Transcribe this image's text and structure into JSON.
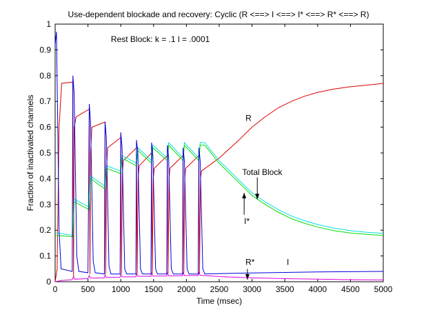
{
  "chart_data": {
    "type": "line",
    "title": "Use-dependent blockade and recovery:  Cyclic (R <==> I <==> I* <==> R* <==> R)",
    "xlabel": "Time (msec)",
    "ylabel": "Fraction of inactivated channels",
    "xlim": [
      0,
      5000
    ],
    "ylim": [
      0,
      1
    ],
    "xticks": [
      0,
      500,
      1000,
      1500,
      2000,
      2500,
      3000,
      3500,
      4000,
      4500,
      5000
    ],
    "yticks": [
      0,
      0.1,
      0.2,
      0.3,
      0.4,
      0.5,
      0.6,
      0.7,
      0.8,
      0.9,
      1
    ],
    "grid": false,
    "annotations": [
      {
        "text": "Rest Block:  k = .1  l = .0001",
        "x": 850,
        "y": 0.93
      },
      {
        "text": "R",
        "x": 2900,
        "y": 0.625
      },
      {
        "text": "Total Block",
        "x": 2850,
        "y": 0.415
      },
      {
        "text": "I*",
        "x": 2880,
        "y": 0.225
      },
      {
        "text": "R*",
        "x": 2900,
        "y": 0.065
      },
      {
        "text": "I",
        "x": 3530,
        "y": 0.065
      }
    ],
    "arrows": [
      {
        "from": [
          3080,
          0.405
        ],
        "to": [
          3080,
          0.32
        ]
      },
      {
        "from": [
          2880,
          0.26
        ],
        "to": [
          2880,
          0.345
        ]
      },
      {
        "from": [
          2930,
          0.05
        ],
        "to": [
          2930,
          0.008
        ]
      }
    ],
    "series": [
      {
        "name": "R",
        "color": "#dd0000",
        "values": [
          [
            0,
            0
          ],
          [
            30,
            0.05
          ],
          [
            60,
            0.6
          ],
          [
            100,
            0.77
          ],
          [
            270,
            0.775
          ],
          [
            280,
            0.02
          ],
          [
            290,
            0.6
          ],
          [
            320,
            0.64
          ],
          [
            520,
            0.67
          ],
          [
            530,
            0.03
          ],
          [
            540,
            0.5
          ],
          [
            560,
            0.6
          ],
          [
            760,
            0.62
          ],
          [
            770,
            0.03
          ],
          [
            785,
            0.45
          ],
          [
            800,
            0.52
          ],
          [
            1000,
            0.56
          ],
          [
            1010,
            0.03
          ],
          [
            1025,
            0.42
          ],
          [
            1040,
            0.47
          ],
          [
            1240,
            0.52
          ],
          [
            1250,
            0.03
          ],
          [
            1265,
            0.4
          ],
          [
            1280,
            0.45
          ],
          [
            1470,
            0.5
          ],
          [
            1480,
            0.03
          ],
          [
            1495,
            0.4
          ],
          [
            1510,
            0.44
          ],
          [
            1710,
            0.49
          ],
          [
            1720,
            0.03
          ],
          [
            1735,
            0.4
          ],
          [
            1750,
            0.44
          ],
          [
            1950,
            0.49
          ],
          [
            1960,
            0.03
          ],
          [
            1975,
            0.4
          ],
          [
            1990,
            0.44
          ],
          [
            2190,
            0.49
          ],
          [
            2200,
            0.03
          ],
          [
            2215,
            0.4
          ],
          [
            2230,
            0.43
          ],
          [
            2500,
            0.48
          ],
          [
            2800,
            0.55
          ],
          [
            3000,
            0.6
          ],
          [
            3200,
            0.64
          ],
          [
            3400,
            0.675
          ],
          [
            3600,
            0.7
          ],
          [
            3800,
            0.72
          ],
          [
            4000,
            0.735
          ],
          [
            4250,
            0.748
          ],
          [
            4500,
            0.757
          ],
          [
            4750,
            0.763
          ],
          [
            5000,
            0.77
          ]
        ]
      },
      {
        "name": "Total Block",
        "color": "#00dddd",
        "values": [
          [
            0,
            0.19
          ],
          [
            270,
            0.18
          ],
          [
            290,
            0.32
          ],
          [
            520,
            0.29
          ],
          [
            540,
            0.41
          ],
          [
            760,
            0.37
          ],
          [
            780,
            0.45
          ],
          [
            1000,
            0.43
          ],
          [
            1020,
            0.49
          ],
          [
            1240,
            0.46
          ],
          [
            1260,
            0.52
          ],
          [
            1470,
            0.47
          ],
          [
            1490,
            0.53
          ],
          [
            1710,
            0.48
          ],
          [
            1730,
            0.54
          ],
          [
            1950,
            0.48
          ],
          [
            1970,
            0.54
          ],
          [
            2190,
            0.48
          ],
          [
            2210,
            0.54
          ],
          [
            2280,
            0.54
          ],
          [
            2500,
            0.47
          ],
          [
            2700,
            0.42
          ],
          [
            2900,
            0.37
          ],
          [
            3000,
            0.345
          ],
          [
            3200,
            0.31
          ],
          [
            3400,
            0.28
          ],
          [
            3600,
            0.255
          ],
          [
            3800,
            0.237
          ],
          [
            4000,
            0.222
          ],
          [
            4250,
            0.208
          ],
          [
            4500,
            0.198
          ],
          [
            4750,
            0.192
          ],
          [
            5000,
            0.188
          ]
        ]
      },
      {
        "name": "I*",
        "color": "#00dd00",
        "values": [
          [
            0,
            0.18
          ],
          [
            270,
            0.175
          ],
          [
            290,
            0.31
          ],
          [
            520,
            0.28
          ],
          [
            540,
            0.4
          ],
          [
            760,
            0.36
          ],
          [
            780,
            0.44
          ],
          [
            1000,
            0.42
          ],
          [
            1020,
            0.48
          ],
          [
            1240,
            0.45
          ],
          [
            1260,
            0.51
          ],
          [
            1470,
            0.46
          ],
          [
            1490,
            0.52
          ],
          [
            1710,
            0.47
          ],
          [
            1730,
            0.53
          ],
          [
            1950,
            0.47
          ],
          [
            1970,
            0.53
          ],
          [
            2190,
            0.47
          ],
          [
            2210,
            0.53
          ],
          [
            2280,
            0.53
          ],
          [
            2500,
            0.46
          ],
          [
            2700,
            0.41
          ],
          [
            2900,
            0.36
          ],
          [
            3000,
            0.335
          ],
          [
            3200,
            0.3
          ],
          [
            3400,
            0.27
          ],
          [
            3600,
            0.245
          ],
          [
            3800,
            0.227
          ],
          [
            4000,
            0.212
          ],
          [
            4250,
            0.198
          ],
          [
            4500,
            0.189
          ],
          [
            4750,
            0.184
          ],
          [
            5000,
            0.18
          ]
        ]
      },
      {
        "name": "I",
        "color": "#0000dd",
        "values": [
          [
            0,
            0.92
          ],
          [
            20,
            0.97
          ],
          [
            40,
            0.6
          ],
          [
            60,
            0.2
          ],
          [
            90,
            0.05
          ],
          [
            260,
            0.04
          ],
          [
            270,
            0.8
          ],
          [
            290,
            0.73
          ],
          [
            330,
            0.1
          ],
          [
            360,
            0.04
          ],
          [
            500,
            0.035
          ],
          [
            520,
            0.69
          ],
          [
            540,
            0.62
          ],
          [
            580,
            0.08
          ],
          [
            610,
            0.035
          ],
          [
            750,
            0.03
          ],
          [
            760,
            0.62
          ],
          [
            780,
            0.56
          ],
          [
            820,
            0.06
          ],
          [
            850,
            0.03
          ],
          [
            990,
            0.03
          ],
          [
            1000,
            0.58
          ],
          [
            1020,
            0.52
          ],
          [
            1060,
            0.05
          ],
          [
            1090,
            0.03
          ],
          [
            1230,
            0.03
          ],
          [
            1240,
            0.55
          ],
          [
            1260,
            0.5
          ],
          [
            1300,
            0.05
          ],
          [
            1330,
            0.03
          ],
          [
            1460,
            0.03
          ],
          [
            1470,
            0.54
          ],
          [
            1490,
            0.49
          ],
          [
            1530,
            0.05
          ],
          [
            1560,
            0.03
          ],
          [
            1700,
            0.03
          ],
          [
            1710,
            0.53
          ],
          [
            1730,
            0.48
          ],
          [
            1770,
            0.05
          ],
          [
            1800,
            0.03
          ],
          [
            1940,
            0.03
          ],
          [
            1950,
            0.52
          ],
          [
            1970,
            0.47
          ],
          [
            2010,
            0.05
          ],
          [
            2040,
            0.03
          ],
          [
            2180,
            0.03
          ],
          [
            2190,
            0.52
          ],
          [
            2210,
            0.47
          ],
          [
            2250,
            0.05
          ],
          [
            2280,
            0.03
          ],
          [
            2600,
            0.032
          ],
          [
            3000,
            0.034
          ],
          [
            3500,
            0.036
          ],
          [
            4000,
            0.038
          ],
          [
            4500,
            0.039
          ],
          [
            5000,
            0.04
          ]
        ]
      },
      {
        "name": "R*",
        "color": "#dd00dd",
        "values": [
          [
            0,
            0
          ],
          [
            40,
            0.002
          ],
          [
            100,
            0.005
          ],
          [
            260,
            0.008
          ],
          [
            280,
            0.02
          ],
          [
            300,
            0.01
          ],
          [
            500,
            0.012
          ],
          [
            520,
            0.024
          ],
          [
            540,
            0.014
          ],
          [
            750,
            0.015
          ],
          [
            760,
            0.027
          ],
          [
            780,
            0.017
          ],
          [
            990,
            0.017
          ],
          [
            1000,
            0.029
          ],
          [
            1020,
            0.019
          ],
          [
            1230,
            0.019
          ],
          [
            1240,
            0.031
          ],
          [
            1260,
            0.021
          ],
          [
            1460,
            0.021
          ],
          [
            1470,
            0.033
          ],
          [
            1490,
            0.022
          ],
          [
            1700,
            0.022
          ],
          [
            1710,
            0.034
          ],
          [
            1730,
            0.023
          ],
          [
            1940,
            0.023
          ],
          [
            1950,
            0.035
          ],
          [
            1970,
            0.024
          ],
          [
            2180,
            0.024
          ],
          [
            2190,
            0.036
          ],
          [
            2210,
            0.025
          ],
          [
            2500,
            0.02
          ],
          [
            3000,
            0.015
          ],
          [
            3500,
            0.012
          ],
          [
            4000,
            0.01
          ],
          [
            4500,
            0.008
          ],
          [
            5000,
            0.007
          ]
        ]
      }
    ]
  }
}
